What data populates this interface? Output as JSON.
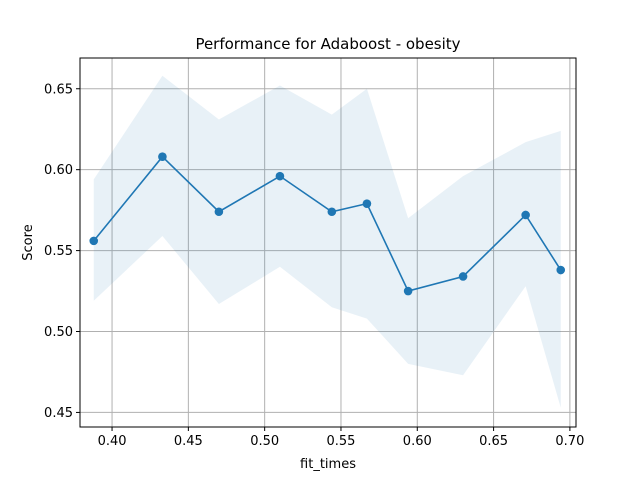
{
  "chart_data": {
    "type": "line",
    "title": "Performance for Adaboost - obesity",
    "xlabel": "fit_times",
    "ylabel": "Score",
    "xlim": [
      0.379,
      0.704
    ],
    "ylim": [
      0.441,
      0.669
    ],
    "xticks": [
      0.4,
      0.45,
      0.5,
      0.55,
      0.6,
      0.65,
      0.7
    ],
    "xtick_labels": [
      "0.40",
      "0.45",
      "0.50",
      "0.55",
      "0.60",
      "0.65",
      "0.70"
    ],
    "yticks": [
      0.45,
      0.5,
      0.55,
      0.6,
      0.65
    ],
    "ytick_labels": [
      "0.45",
      "0.50",
      "0.55",
      "0.60",
      "0.65"
    ],
    "grid": true,
    "colors": {
      "line": "#1f77b4",
      "band": "#1f77b4",
      "grid": "#b0b0b0"
    },
    "band_opacity": 0.1,
    "series": [
      {
        "x": [
          0.388,
          0.433,
          0.47,
          0.51,
          0.544,
          0.567,
          0.594,
          0.63,
          0.671,
          0.694
        ],
        "y": [
          0.556,
          0.608,
          0.574,
          0.596,
          0.574,
          0.579,
          0.525,
          0.534,
          0.572,
          0.538
        ],
        "upper": [
          0.594,
          0.658,
          0.631,
          0.652,
          0.634,
          0.65,
          0.57,
          0.596,
          0.617,
          0.624
        ],
        "lower": [
          0.519,
          0.559,
          0.517,
          0.54,
          0.515,
          0.508,
          0.48,
          0.473,
          0.528,
          0.453
        ]
      }
    ]
  }
}
